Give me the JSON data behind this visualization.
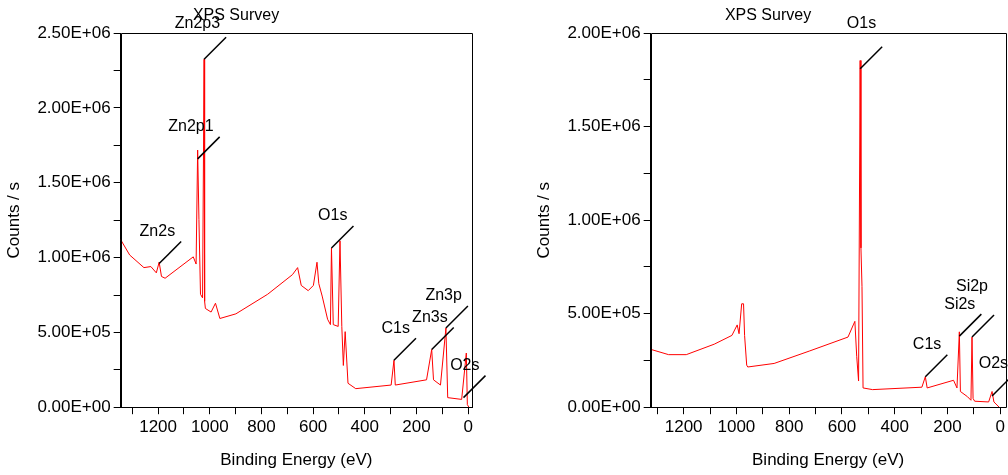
{
  "chart_data": [
    {
      "type": "line",
      "title": "XPS Survey",
      "xlabel": "Binding Energy (eV)",
      "ylabel": "Counts / s",
      "xlim": [
        1345,
        -15
      ],
      "ylim": [
        0,
        2500000
      ],
      "xticks": [
        {
          "value": 1300,
          "label": null
        },
        {
          "value": 1200,
          "label": "1200"
        },
        {
          "value": 1100,
          "label": null
        },
        {
          "value": 1000,
          "label": "1000"
        },
        {
          "value": 900,
          "label": null
        },
        {
          "value": 800,
          "label": "800"
        },
        {
          "value": 700,
          "label": null
        },
        {
          "value": 600,
          "label": "600"
        },
        {
          "value": 500,
          "label": null
        },
        {
          "value": 400,
          "label": "400"
        },
        {
          "value": 300,
          "label": null
        },
        {
          "value": 200,
          "label": "200"
        },
        {
          "value": 100,
          "label": null
        },
        {
          "value": 0,
          "label": "0"
        }
      ],
      "yticks": [
        {
          "value": 0,
          "label": "0.00E+00"
        },
        {
          "value": 250000,
          "label": null
        },
        {
          "value": 500000,
          "label": "5.00E+05"
        },
        {
          "value": 750000,
          "label": null
        },
        {
          "value": 1000000,
          "label": "1.00E+06"
        },
        {
          "value": 1250000,
          "label": null
        },
        {
          "value": 1500000,
          "label": "1.50E+06"
        },
        {
          "value": 1750000,
          "label": null
        },
        {
          "value": 2000000,
          "label": "2.00E+06"
        },
        {
          "value": 2250000,
          "label": null
        },
        {
          "value": 2500000,
          "label": "2.50E+06"
        }
      ],
      "grid": false,
      "legend": false,
      "marker": "none",
      "line_style": "solid",
      "series": [
        {
          "color": "#ff0000",
          "x": [
            1345,
            1310,
            1255,
            1228,
            1207,
            1196,
            1187,
            1173,
            1064,
            1053,
            1047,
            1042,
            1036,
            1028,
            1022,
            1020,
            1017,
            995,
            978,
            961,
            899,
            776,
            680,
            660,
            646,
            619,
            599,
            585,
            578,
            565,
            544,
            533,
            529,
            522,
            503,
            496,
            489,
            483,
            476,
            465,
            435,
            298,
            287,
            282,
            161,
            141,
            134,
            107,
            86,
            79,
            25,
            7,
            3,
            -3
          ],
          "values": [
            1120000,
            1017000,
            933000,
            940000,
            898000,
            969000,
            874000,
            862000,
            1005000,
            957000,
            1719000,
            1255000,
            755000,
            731000,
            2326000,
            707000,
            660000,
            636000,
            695000,
            593000,
            624000,
            755000,
            886000,
            933000,
            814000,
            779000,
            814000,
            969000,
            826000,
            743000,
            588000,
            552000,
            1064000,
            552000,
            540000,
            1112000,
            540000,
            279000,
            505000,
            160000,
            124000,
            148000,
            314000,
            148000,
            183000,
            386000,
            183000,
            148000,
            529000,
            64000,
            52000,
            362000,
            17000,
            0
          ]
        }
      ],
      "annotations": [
        {
          "text": "Zn2p3",
          "x": 1022,
          "y": 2326000
        },
        {
          "text": "Zn2p1",
          "x": 1047,
          "y": 1660000
        },
        {
          "text": "Zn2s",
          "x": 1196,
          "y": 960000
        },
        {
          "text": "O1s",
          "x": 529,
          "y": 1064000
        },
        {
          "text": "C1s",
          "x": 287,
          "y": 314000
        },
        {
          "text": "Zn3s",
          "x": 141,
          "y": 386000
        },
        {
          "text": "Zn3p",
          "x": 86,
          "y": 529000
        },
        {
          "text": "O2s",
          "x": 18,
          "y": 64000
        }
      ]
    },
    {
      "type": "line",
      "title": "XPS Survey",
      "xlabel": "Binding Energy (eV)",
      "ylabel": "Counts / s",
      "xlim": [
        1325,
        -20
      ],
      "ylim": [
        0,
        2000000
      ],
      "xticks": [
        {
          "value": 1300,
          "label": null
        },
        {
          "value": 1200,
          "label": "1200"
        },
        {
          "value": 1100,
          "label": null
        },
        {
          "value": 1000,
          "label": "1000"
        },
        {
          "value": 900,
          "label": null
        },
        {
          "value": 800,
          "label": "800"
        },
        {
          "value": 700,
          "label": null
        },
        {
          "value": 600,
          "label": "600"
        },
        {
          "value": 500,
          "label": null
        },
        {
          "value": 400,
          "label": "400"
        },
        {
          "value": 300,
          "label": null
        },
        {
          "value": 200,
          "label": "200"
        },
        {
          "value": 100,
          "label": null
        },
        {
          "value": 0,
          "label": "0"
        }
      ],
      "yticks": [
        {
          "value": 0,
          "label": "0.00E+00"
        },
        {
          "value": 250000,
          "label": null
        },
        {
          "value": 500000,
          "label": "5.00E+05"
        },
        {
          "value": 750000,
          "label": null
        },
        {
          "value": 1000000,
          "label": "1.00E+06"
        },
        {
          "value": 1250000,
          "label": null
        },
        {
          "value": 1500000,
          "label": "1.50E+06"
        },
        {
          "value": 1750000,
          "label": null
        },
        {
          "value": 2000000,
          "label": "2.00E+06"
        }
      ],
      "grid": false,
      "legend": false,
      "marker": "none",
      "line_style": "solid",
      "series": [
        {
          "color": "#ff0000",
          "x": [
            1324,
            1257,
            1190,
            1084,
            1017,
            997,
            990,
            980,
            973,
            969,
            961,
            957,
            857,
            724,
            577,
            557,
            551,
            544,
            537,
            531,
            528,
            524,
            520,
            484,
            297,
            284,
            277,
            177,
            164,
            155,
            151,
            124,
            111,
            107,
            103,
            97,
            44,
            31,
            24,
            4
          ],
          "values": [
            309000,
            281000,
            281000,
            337000,
            384000,
            440000,
            393000,
            553000,
            553000,
            384000,
            225000,
            215000,
            234000,
            300000,
            375000,
            440000,
            459000,
            272000,
            140000,
            1854000,
            852000,
            646000,
            103000,
            94000,
            107000,
            163000,
            103000,
            144000,
            103000,
            403000,
            84000,
            56000,
            37000,
            375000,
            47000,
            32000,
            28000,
            84000,
            28000,
            0
          ]
        }
      ],
      "annotations": [
        {
          "text": "O1s",
          "x": 531,
          "y": 1810000
        },
        {
          "text": "C1s",
          "x": 284,
          "y": 163000
        },
        {
          "text": "Si2s",
          "x": 155,
          "y": 380000
        },
        {
          "text": "Si2p",
          "x": 107,
          "y": 375000
        },
        {
          "text": "O2s",
          "x": 31,
          "y": 60000
        }
      ]
    }
  ]
}
